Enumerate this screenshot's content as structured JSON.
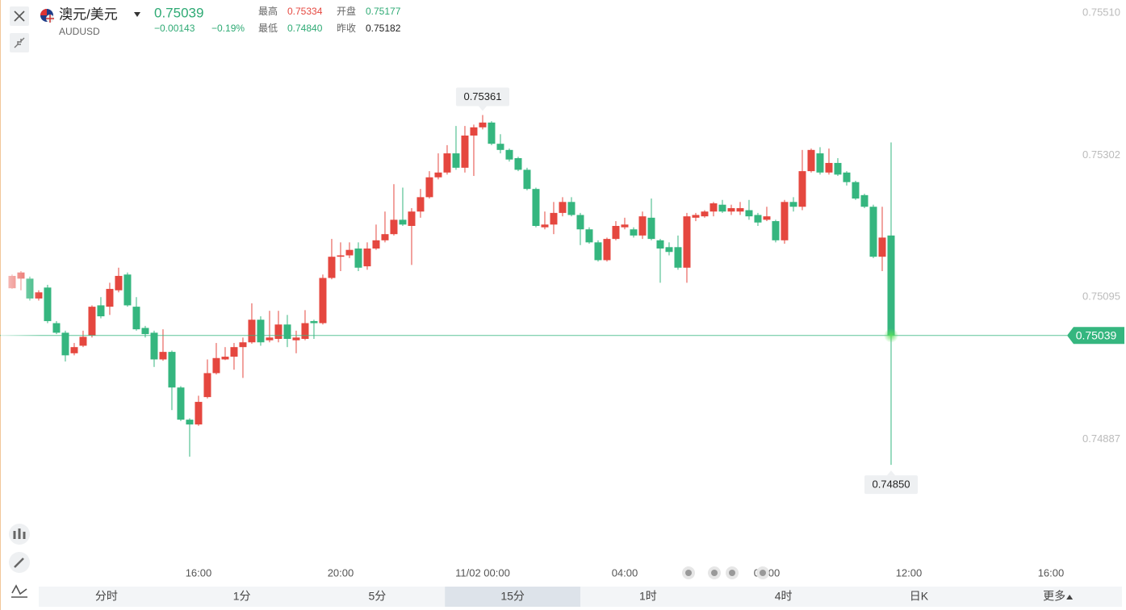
{
  "header": {
    "title": "澳元/美元",
    "symbol": "AUDUSD",
    "price": "0.75039",
    "change": "−0.00143",
    "change_pct": "−0.19%",
    "stats": [
      {
        "label": "最高",
        "value": "0.75334"
      },
      {
        "label": "开盘",
        "value": "0.75177"
      },
      {
        "label": "最低",
        "value": "0.74840"
      },
      {
        "label": "昨收",
        "value": "0.75182"
      }
    ]
  },
  "chart_data": {
    "type": "candlestick",
    "up_color": "#e5473f",
    "down_color": "#35b67f",
    "xlim": [
      -1.36,
      118.82
    ],
    "ylim": [
      0.74704,
      0.75529
    ],
    "yticks": [
      {
        "value": 0.7551,
        "label": "0.75510"
      },
      0.75302,
      0.75095,
      0.74887
    ],
    "xticks": [
      {
        "value": 21,
        "label": "16:00"
      },
      {
        "value": 37,
        "label": "20:00"
      },
      {
        "value": 53,
        "label": "11/02 00:00"
      },
      {
        "value": 69,
        "label": "04:00"
      },
      {
        "value": 85,
        "label": "08:00"
      },
      {
        "value": 101,
        "label": "12:00"
      },
      {
        "value": 117,
        "label": "16:00"
      }
    ],
    "last_price": 0.75039,
    "annotations": [
      {
        "x": 53,
        "y": 0.75361
      },
      {
        "x": 99,
        "y": 0.7485,
        "label": "0.74850"
      }
    ],
    "candles": {
      "open": [
        0.75108,
        0.75122,
        0.75122,
        0.75093,
        0.75109,
        0.75057,
        0.75043,
        0.75013,
        0.75024,
        0.75039,
        0.75083,
        0.75081,
        0.75105,
        0.75128,
        0.75081,
        0.7505,
        0.75043,
        0.75004,
        0.75015,
        0.74963,
        0.74916,
        0.74909,
        0.74949,
        0.74984,
        0.75004,
        0.75008,
        0.75022,
        0.75029,
        0.75062,
        0.75032,
        0.75034,
        0.75055,
        0.75032,
        0.75034,
        0.7506,
        0.75057,
        0.75123,
        0.75154,
        0.75156,
        0.75166,
        0.7514,
        0.75166,
        0.75178,
        0.75187,
        0.75208,
        0.75199,
        0.7522,
        0.75241,
        0.7527,
        0.75277,
        0.75305,
        0.75284,
        0.75331,
        0.75343,
        0.7535,
        0.75319,
        0.7531,
        0.75298,
        0.75281,
        0.75253,
        0.75197,
        0.75201,
        0.75218,
        0.75234,
        0.75215,
        0.75194,
        0.75175,
        0.75149,
        0.7518,
        0.75197,
        0.75194,
        0.75185,
        0.75211,
        0.75178,
        0.75168,
        0.75168,
        0.75138,
        0.75211,
        0.75213,
        0.7522,
        0.7523,
        0.7522,
        0.7522,
        0.75222,
        0.75215,
        0.75208,
        0.75206,
        0.75178,
        0.75234,
        0.75227,
        0.75279,
        0.75305,
        0.75277,
        0.75291,
        0.75277,
        0.75263,
        0.75244,
        0.75227,
        0.75154,
        0.75185
      ],
      "high": [
        0.75128,
        0.75133,
        0.75125,
        0.75105,
        0.75113,
        0.7506,
        0.75046,
        0.75028,
        0.75046,
        0.75083,
        0.75095,
        0.75116,
        0.75138,
        0.75131,
        0.75095,
        0.75053,
        0.75046,
        0.75048,
        0.75017,
        0.74965,
        0.74918,
        0.74951,
        0.75004,
        0.75028,
        0.75022,
        0.75028,
        0.75036,
        0.75086,
        0.75067,
        0.75075,
        0.75075,
        0.75069,
        0.75046,
        0.75076,
        0.75062,
        0.75128,
        0.7518,
        0.75175,
        0.75175,
        0.75175,
        0.75175,
        0.75201,
        0.7522,
        0.7526,
        0.75255,
        0.75225,
        0.75253,
        0.75279,
        0.75305,
        0.75317,
        0.75345,
        0.75345,
        0.75347,
        0.75361,
        0.75352,
        0.75333,
        0.75312,
        0.753,
        0.75284,
        0.75255,
        0.7522,
        0.75234,
        0.75241,
        0.75241,
        0.75218,
        0.75197,
        0.75178,
        0.75182,
        0.75206,
        0.75211,
        0.75197,
        0.7522,
        0.75239,
        0.7518,
        0.75175,
        0.75185,
        0.75218,
        0.75218,
        0.75222,
        0.75234,
        0.75237,
        0.7523,
        0.75234,
        0.75237,
        0.75218,
        0.75227,
        0.75208,
        0.75237,
        0.75241,
        0.7531,
        0.75312,
        0.75314,
        0.75312,
        0.75298,
        0.75279,
        0.75265,
        0.75246,
        0.7523,
        0.75227,
        0.75321
      ],
      "low": [
        0.75107,
        0.75105,
        0.7509,
        0.7509,
        0.75057,
        0.75041,
        0.75001,
        0.7501,
        0.75022,
        0.75036,
        0.75064,
        0.75069,
        0.75102,
        0.75081,
        0.75046,
        0.75036,
        0.74993,
        0.75002,
        0.7493,
        0.74914,
        0.74862,
        0.74907,
        0.74947,
        0.74982,
        0.75003,
        0.74989,
        0.74977,
        0.75027,
        0.75024,
        0.75029,
        0.75029,
        0.75022,
        0.75013,
        0.75032,
        0.75034,
        0.75055,
        0.75121,
        0.75133,
        0.75152,
        0.75133,
        0.75135,
        0.75164,
        0.75175,
        0.75185,
        0.75199,
        0.75142,
        0.75211,
        0.75239,
        0.75267,
        0.75274,
        0.75281,
        0.75277,
        0.75272,
        0.7534,
        0.75317,
        0.75305,
        0.75293,
        0.75279,
        0.75251,
        0.75197,
        0.75194,
        0.75187,
        0.75213,
        0.75213,
        0.75171,
        0.75173,
        0.75147,
        0.75147,
        0.75178,
        0.75194,
        0.75182,
        0.7518,
        0.75178,
        0.75116,
        0.75156,
        0.75135,
        0.75116,
        0.75206,
        0.75211,
        0.75213,
        0.75218,
        0.75215,
        0.75215,
        0.75208,
        0.75199,
        0.75206,
        0.75175,
        0.75173,
        0.7522,
        0.75222,
        0.75277,
        0.75274,
        0.75274,
        0.75272,
        0.75258,
        0.75237,
        0.75225,
        0.75152,
        0.75133,
        0.7485
      ],
      "close": [
        0.75126,
        0.75131,
        0.75093,
        0.75102,
        0.7506,
        0.75043,
        0.7501,
        0.75022,
        0.75037,
        0.75081,
        0.75067,
        0.75107,
        0.75126,
        0.75083,
        0.75048,
        0.75041,
        0.75004,
        0.75015,
        0.74963,
        0.74916,
        0.74909,
        0.74942,
        0.74984,
        0.75006,
        0.75008,
        0.75022,
        0.75029,
        0.75062,
        0.75029,
        0.75036,
        0.75055,
        0.75034,
        0.75036,
        0.75057,
        0.75057,
        0.75123,
        0.75154,
        0.75156,
        0.75164,
        0.75138,
        0.75166,
        0.75178,
        0.75187,
        0.75208,
        0.75201,
        0.7522,
        0.75241,
        0.7527,
        0.75277,
        0.75305,
        0.75284,
        0.75331,
        0.75343,
        0.7535,
        0.75319,
        0.7531,
        0.75296,
        0.75281,
        0.75253,
        0.75199,
        0.75201,
        0.75218,
        0.75234,
        0.75215,
        0.75194,
        0.75175,
        0.75149,
        0.7518,
        0.75199,
        0.75201,
        0.75185,
        0.75213,
        0.7518,
        0.75166,
        0.75161,
        0.75138,
        0.75213,
        0.75215,
        0.7522,
        0.75232,
        0.7522,
        0.75225,
        0.75225,
        0.75213,
        0.75204,
        0.75213,
        0.75178,
        0.75234,
        0.75227,
        0.75279,
        0.7531,
        0.75277,
        0.75291,
        0.75274,
        0.75263,
        0.75239,
        0.75227,
        0.75154,
        0.75182,
        0.75039
      ]
    }
  },
  "tabs": {
    "items": [
      "分时",
      "1分",
      "5分",
      "15分",
      "1时",
      "4时",
      "日K",
      "更多"
    ],
    "active": 3
  }
}
